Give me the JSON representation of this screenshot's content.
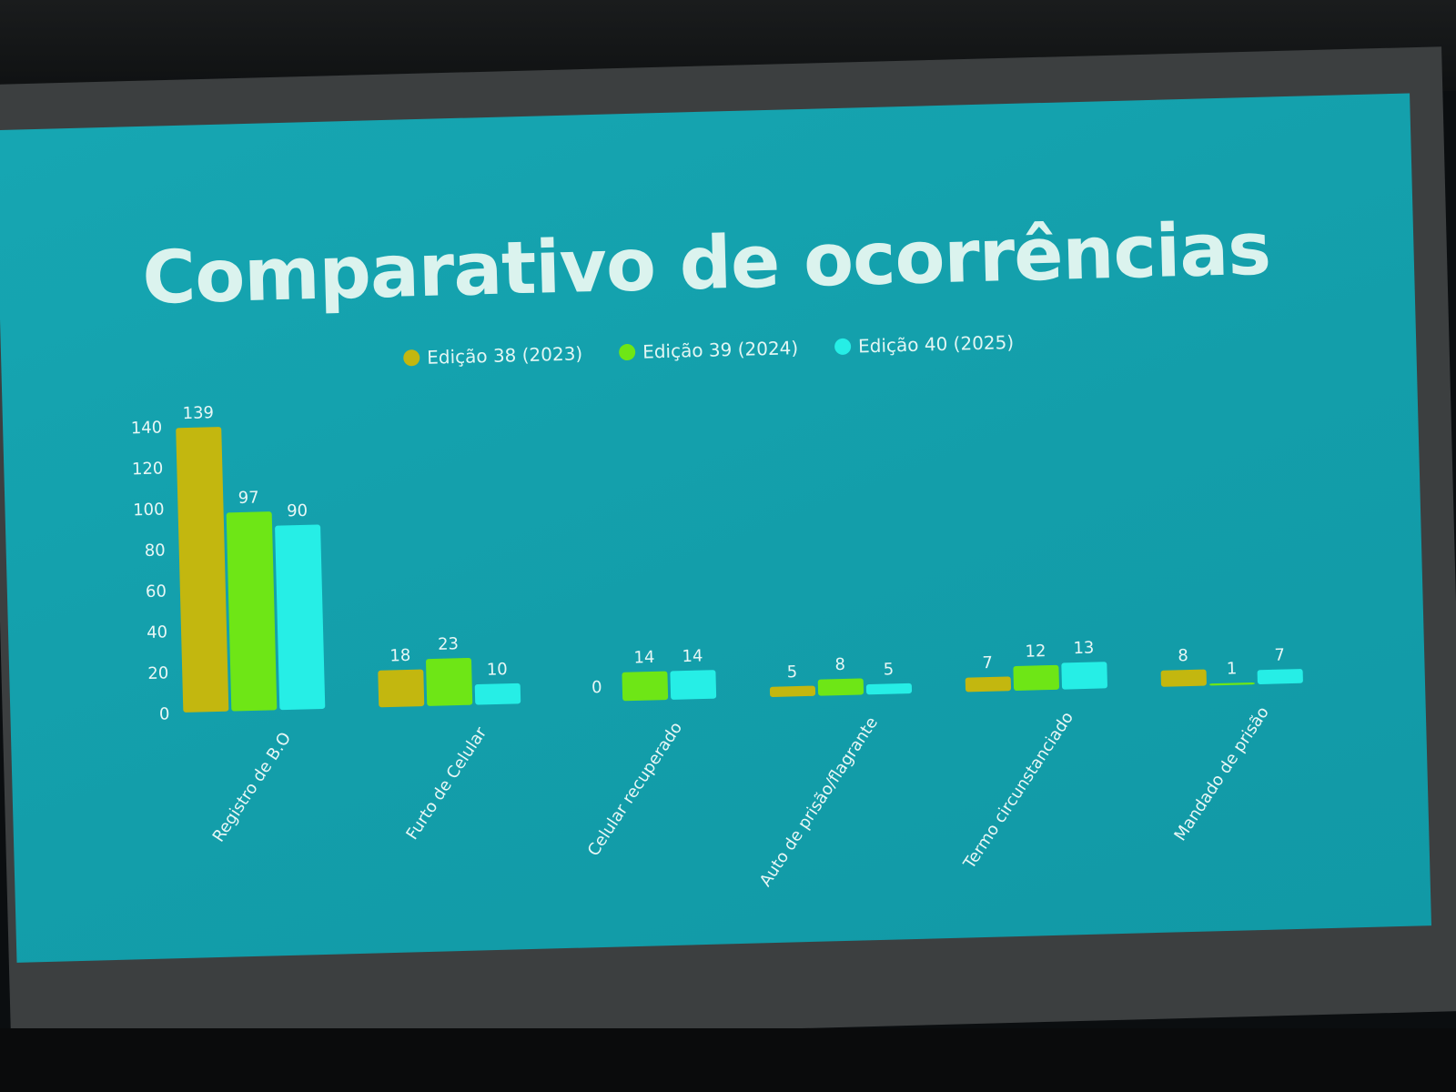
{
  "title": "Comparativo de ocorrências",
  "colors": {
    "Edição 38 (2023)": "#c3b70f",
    "Edição 39 (2024)": "#6ee616",
    "Edição 40 (2025)": "#26eee6"
  },
  "chart_data": {
    "type": "bar",
    "title": "Comparativo de ocorrências",
    "categories": [
      "Registro de B.O",
      "Furto de Celular",
      "Celular recuperado",
      "Auto de prisão/flagrante",
      "Termo circunstanciado",
      "Mandado de prisão"
    ],
    "series": [
      {
        "name": "Edição 38 (2023)",
        "values": [
          139,
          18,
          0,
          5,
          7,
          8
        ]
      },
      {
        "name": "Edição 39 (2024)",
        "values": [
          97,
          23,
          14,
          8,
          12,
          1
        ]
      },
      {
        "name": "Edição 40 (2025)",
        "values": [
          90,
          10,
          14,
          5,
          13,
          7
        ]
      }
    ],
    "ylim": [
      0,
      140
    ],
    "yticks": [
      0,
      20,
      40,
      60,
      80,
      100,
      120,
      140
    ],
    "legend": "top-center",
    "grid": false
  }
}
